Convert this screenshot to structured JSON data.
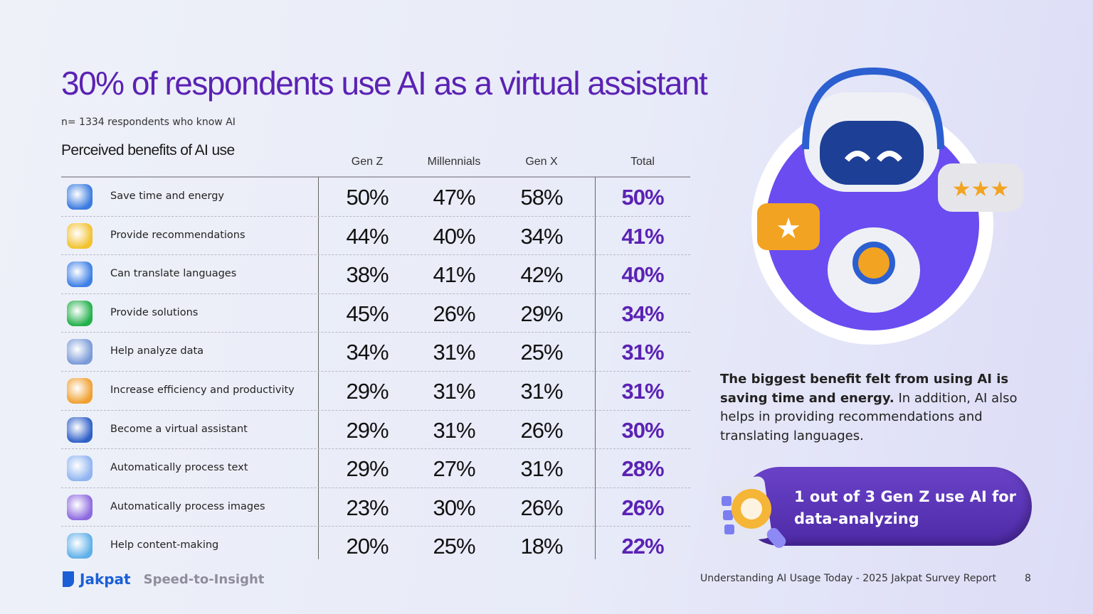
{
  "title": "30% of respondents use AI as a virtual assistant",
  "subtitle": "n= 1334 respondents who know AI",
  "table": {
    "title": "Perceived benefits of AI use",
    "columns": [
      "Gen Z",
      "Millennials",
      "Gen X",
      "Total"
    ],
    "rows": [
      {
        "label": "Save time and energy",
        "icon": "stopwatch-icon",
        "color": "#3a7be0",
        "values": [
          "50%",
          "47%",
          "58%",
          "50%"
        ]
      },
      {
        "label": "Provide recommendations",
        "icon": "lightbulb-icon",
        "color": "#f2c230",
        "values": [
          "44%",
          "40%",
          "34%",
          "41%"
        ]
      },
      {
        "label": "Can translate languages",
        "icon": "translate-icon",
        "color": "#3d7fe6",
        "values": [
          "38%",
          "41%",
          "42%",
          "40%"
        ]
      },
      {
        "label": "Provide solutions",
        "icon": "check-badge-icon",
        "color": "#22b04b",
        "values": [
          "45%",
          "26%",
          "29%",
          "34%"
        ]
      },
      {
        "label": "Help analyze data",
        "icon": "pie-chart-icon",
        "color": "#7a9ad8",
        "values": [
          "34%",
          "31%",
          "25%",
          "31%"
        ]
      },
      {
        "label": "Increase efficiency and productivity",
        "icon": "gears-icon",
        "color": "#f0a030",
        "values": [
          "29%",
          "31%",
          "31%",
          "31%"
        ]
      },
      {
        "label": "Become a virtual assistant",
        "icon": "robot-icon",
        "color": "#2f5fc8",
        "values": [
          "29%",
          "31%",
          "26%",
          "30%"
        ]
      },
      {
        "label": "Automatically process text",
        "icon": "document-icon",
        "color": "#8fb4f0",
        "values": [
          "29%",
          "27%",
          "31%",
          "28%"
        ]
      },
      {
        "label": "Automatically process images",
        "icon": "image-ai-icon",
        "color": "#8d6ae0",
        "values": [
          "23%",
          "30%",
          "26%",
          "26%"
        ]
      },
      {
        "label": "Help content-making",
        "icon": "content-icon",
        "color": "#5fb0e8",
        "values": [
          "20%",
          "25%",
          "18%",
          "22%"
        ]
      }
    ]
  },
  "insight": {
    "bold": "The biggest benefit felt from using AI is saving time and energy.",
    "rest": " In addition, AI also helps in providing recommendations and translating languages."
  },
  "callout": {
    "line1": "1 out of 3 Gen Z use AI for",
    "line2": "data-analyzing"
  },
  "footer": {
    "report": "Understanding AI Usage Today - 2025 Jakpat Survey Report",
    "page": "8"
  },
  "logo": {
    "brand": "Jakpat",
    "tagline": "Speed-to-Insight"
  },
  "colors": {
    "accent": "#5b22b3",
    "brand": "#1a5fd6"
  }
}
